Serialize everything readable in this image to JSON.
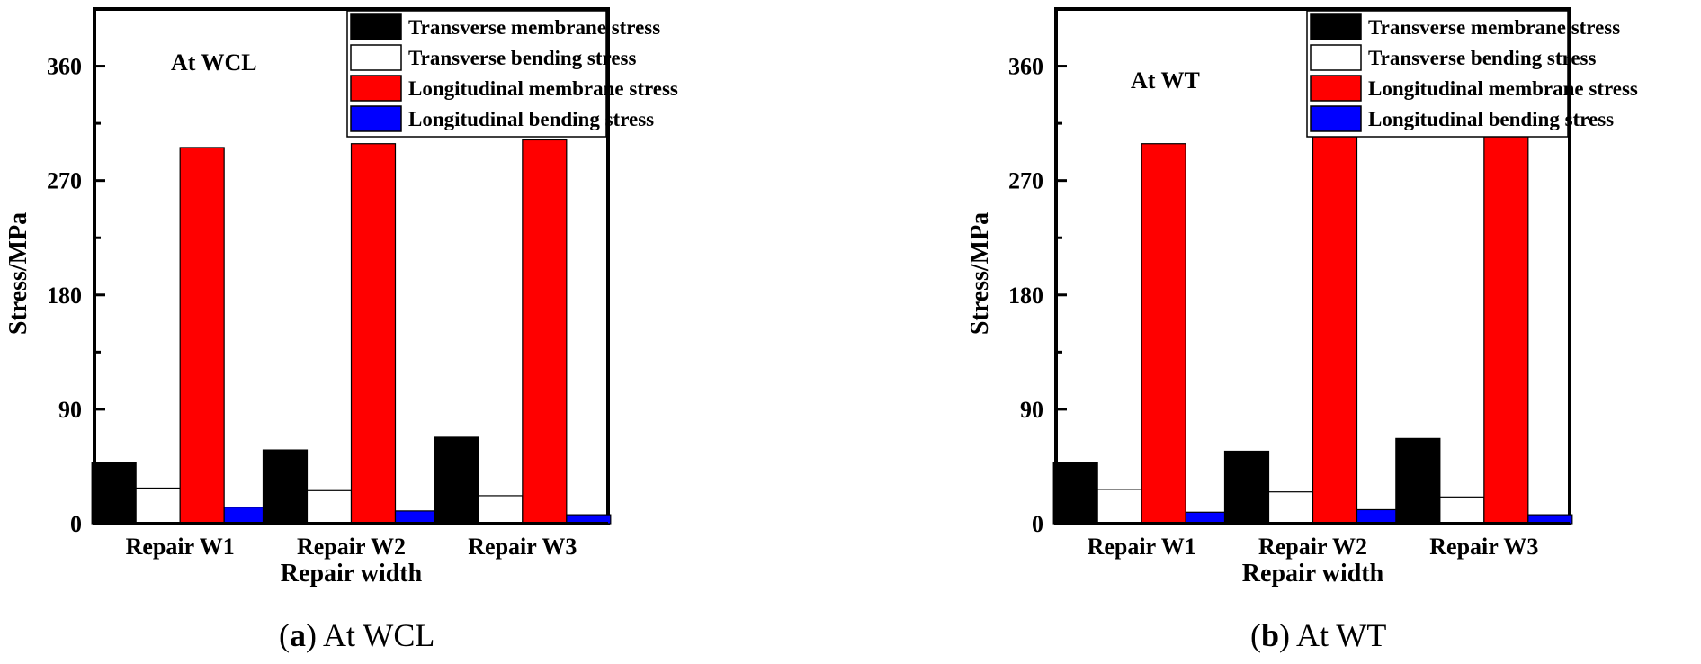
{
  "chart_data": [
    {
      "type": "bar",
      "annotation": "At WCL",
      "xlabel": "Repair width",
      "ylabel": "Stress/MPa",
      "categories": [
        "Repair W1",
        "Repair W2",
        "Repair W3"
      ],
      "ylim": [
        0,
        405
      ],
      "yticks": [
        0,
        90,
        180,
        270,
        360
      ],
      "legend_position": "top-right",
      "grid": false,
      "series": [
        {
          "name": "Transverse membrane stress",
          "values": [
            48,
            58,
            68
          ],
          "color": "#000000"
        },
        {
          "name": "Transverse bending stress",
          "values": [
            28,
            26,
            22
          ],
          "color": "#ffffff"
        },
        {
          "name": "Longitudinal membrane stress",
          "values": [
            296,
            299,
            302
          ],
          "color": "#ff0000"
        },
        {
          "name": "Longitudinal bending stress",
          "values": [
            13,
            10,
            7
          ],
          "color": "#0000ff"
        }
      ],
      "caption": {
        "letter": "a",
        "text": "At WCL"
      }
    },
    {
      "type": "bar",
      "annotation": "At WT",
      "xlabel": "Repair width",
      "ylabel": "Stress/MPa",
      "categories": [
        "Repair W1",
        "Repair W2",
        "Repair W3"
      ],
      "ylim": [
        0,
        405
      ],
      "yticks": [
        0,
        90,
        180,
        270,
        360
      ],
      "legend_position": "top-right",
      "grid": false,
      "series": [
        {
          "name": "Transverse membrane stress",
          "values": [
            48,
            57,
            67
          ],
          "color": "#000000"
        },
        {
          "name": "Transverse bending stress",
          "values": [
            27,
            25,
            21
          ],
          "color": "#ffffff"
        },
        {
          "name": "Longitudinal membrane stress",
          "values": [
            299,
            305,
            306
          ],
          "color": "#ff0000"
        },
        {
          "name": "Longitudinal bending stress",
          "values": [
            9,
            11,
            7
          ],
          "color": "#0000ff"
        }
      ],
      "caption": {
        "letter": "b",
        "text": "At WT"
      }
    }
  ]
}
